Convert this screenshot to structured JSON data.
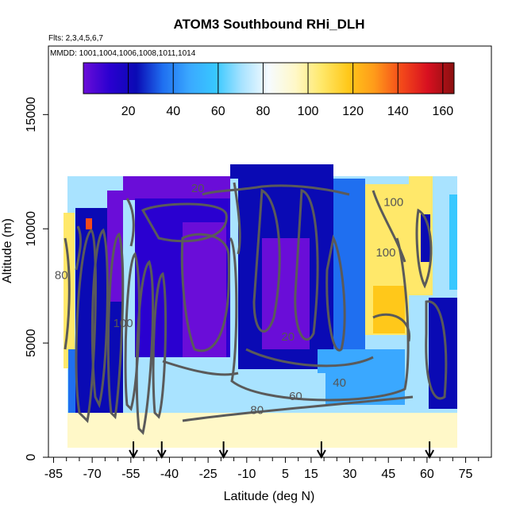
{
  "chart_data": {
    "type": "heatmap",
    "title": "ATOM3 Southbound RHi_DLH",
    "subtitle_flights": "Flts: 2,3,4,5,6,7",
    "subtitle_dates": "MMDD: 1001,1004,1006,1008,1011,1014",
    "xlabel": "Latitude (deg N)",
    "ylabel": "Altitude (m)",
    "xlim": [
      -87,
      85
    ],
    "ylim": [
      0,
      18000
    ],
    "x_tick_labels": [
      "-85",
      "-70",
      "-55",
      "-40",
      "-25",
      "-10",
      "5",
      "15",
      "30",
      "45",
      "60",
      "75"
    ],
    "x_tick_values": [
      -85,
      -70,
      -55,
      -40,
      -25,
      -10,
      5,
      15,
      30,
      45,
      60,
      75
    ],
    "x_minor_tick_values": [
      -80,
      -75,
      -65,
      -60,
      -50,
      -45,
      -35,
      -30,
      -20,
      -15,
      -5,
      0,
      10,
      20,
      25,
      35,
      40,
      50,
      55,
      65,
      70,
      80
    ],
    "y_tick_labels": [
      "0",
      "5000",
      "10000",
      "15000"
    ],
    "y_tick_values": [
      0,
      5000,
      10000,
      15000
    ],
    "colorbar": {
      "min": 0,
      "max": 165,
      "tick_labels": [
        "20",
        "40",
        "60",
        "80",
        "100",
        "120",
        "140",
        "160"
      ],
      "tick_values": [
        20,
        40,
        60,
        80,
        100,
        120,
        140,
        160
      ],
      "colors": [
        "#6a0dd8",
        "#2a00d0",
        "#0a0ab4",
        "#1f6ff0",
        "#3aa8ff",
        "#38c8ff",
        "#a9e3ff",
        "#f6fbff",
        "#fff8c8",
        "#ffe86a",
        "#ffc81a",
        "#ff9a1a",
        "#f44a1a",
        "#d81020",
        "#8a1010"
      ]
    },
    "contour_labels": [
      {
        "text": "20",
        "x": -29,
        "y": 11600
      },
      {
        "text": "100",
        "x": 47,
        "y": 11000
      },
      {
        "text": "100",
        "x": 44,
        "y": 8800
      },
      {
        "text": "100",
        "x": -58,
        "y": 5700
      },
      {
        "text": "80",
        "x": -82,
        "y": 7800
      },
      {
        "text": "20",
        "x": 6,
        "y": 5100
      },
      {
        "text": "60",
        "x": 9,
        "y": 2500
      },
      {
        "text": "80",
        "x": -6,
        "y": 1900
      },
      {
        "text": "40",
        "x": 26,
        "y": 3100
      }
    ],
    "arrow_latitudes": [
      -54,
      -43,
      -19,
      19,
      61
    ]
  }
}
